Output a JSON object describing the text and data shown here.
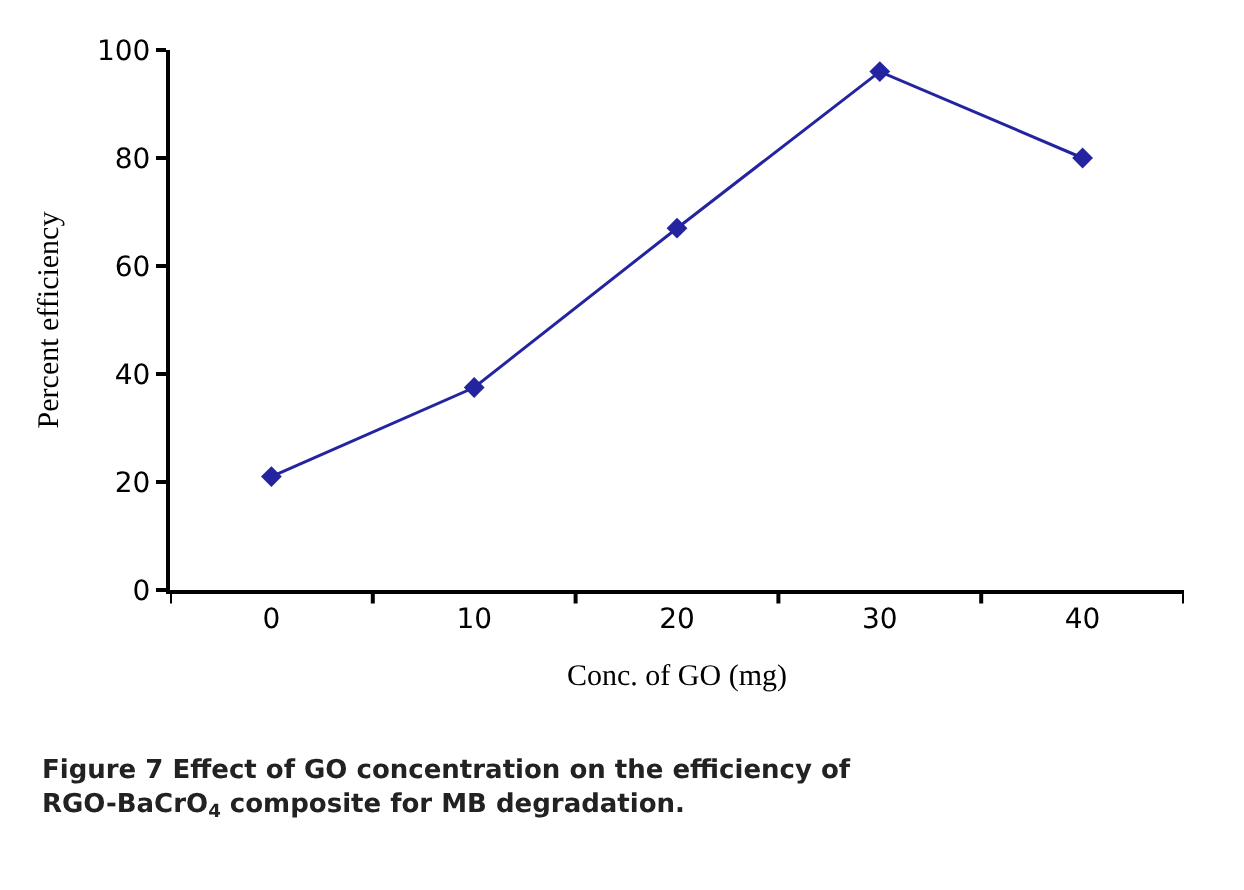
{
  "chart_data": {
    "type": "line",
    "xlabel": "Conc. of GO (mg)",
    "ylabel": "Percent efficiency",
    "categories": [
      "0",
      "10",
      "20",
      "30",
      "40"
    ],
    "series": [
      {
        "color": "#2424a0",
        "values": [
          21,
          37.5,
          67,
          96,
          80
        ]
      }
    ],
    "ylim": [
      0,
      100
    ],
    "yticks": [
      0,
      20,
      40,
      60,
      80,
      100
    ],
    "marker": "diamond",
    "line_style": "solid",
    "annotations": [
      "Figure 7 Effect of GO concentration on the efficiency of RGO-BaCrO$_{4}$ composite for MB degradation."
    ]
  }
}
